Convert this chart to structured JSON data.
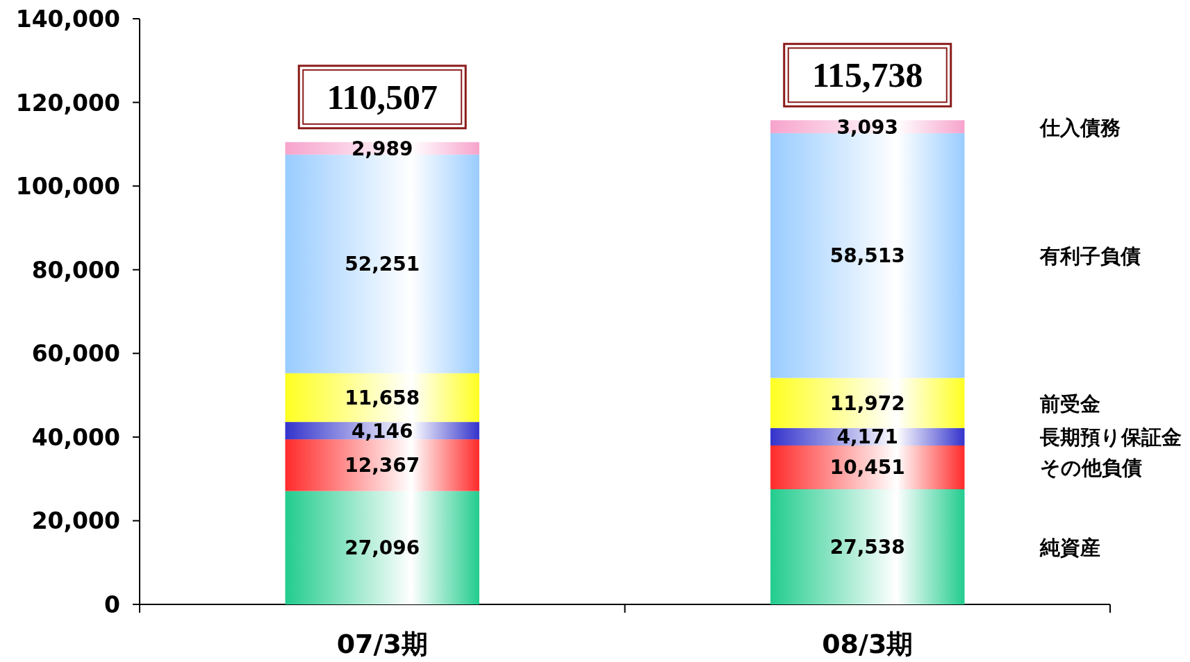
{
  "chart_data": {
    "type": "bar",
    "stacked": true,
    "categories": [
      "07/3期",
      "08/3期"
    ],
    "series": [
      {
        "name": "純資産",
        "color": "#22cc8e",
        "values": [
          27096,
          27538
        ],
        "value_labels": [
          "27,096",
          "27,538"
        ]
      },
      {
        "name": "その他負債",
        "color": "#ff2a2a",
        "values": [
          12367,
          10451
        ],
        "value_labels": [
          "12,367",
          "10,451"
        ]
      },
      {
        "name": "長期預り保証金",
        "color": "#3333cc",
        "values": [
          4146,
          4171
        ],
        "value_labels": [
          "4,146",
          "4,171"
        ]
      },
      {
        "name": "前受金",
        "color": "#ffff22",
        "values": [
          11658,
          11972
        ],
        "value_labels": [
          "11,658",
          "11,972"
        ]
      },
      {
        "name": "有利子負債",
        "color": "#99ccff",
        "values": [
          52251,
          58513
        ],
        "value_labels": [
          "52,251",
          "58,513"
        ]
      },
      {
        "name": "仕入債務",
        "color": "#f7a3cc",
        "values": [
          2989,
          3093
        ],
        "value_labels": [
          "2,989",
          "3,093"
        ]
      }
    ],
    "ylim": [
      0,
      140000
    ],
    "yticks": [
      0,
      {
        "value": 20000,
        "label": "20,000"
      },
      {
        "value": 40000,
        "label": "40,000"
      },
      {
        "value": 60000,
        "label": "60,000"
      },
      {
        "value": 80000,
        "label": "80,000"
      },
      {
        "value": 100000,
        "label": "100,000"
      },
      {
        "value": 120000,
        "label": "120,000"
      },
      {
        "value": 140000,
        "label": "140,000"
      }
    ],
    "totals": [
      "110,507",
      "115,738"
    ]
  }
}
